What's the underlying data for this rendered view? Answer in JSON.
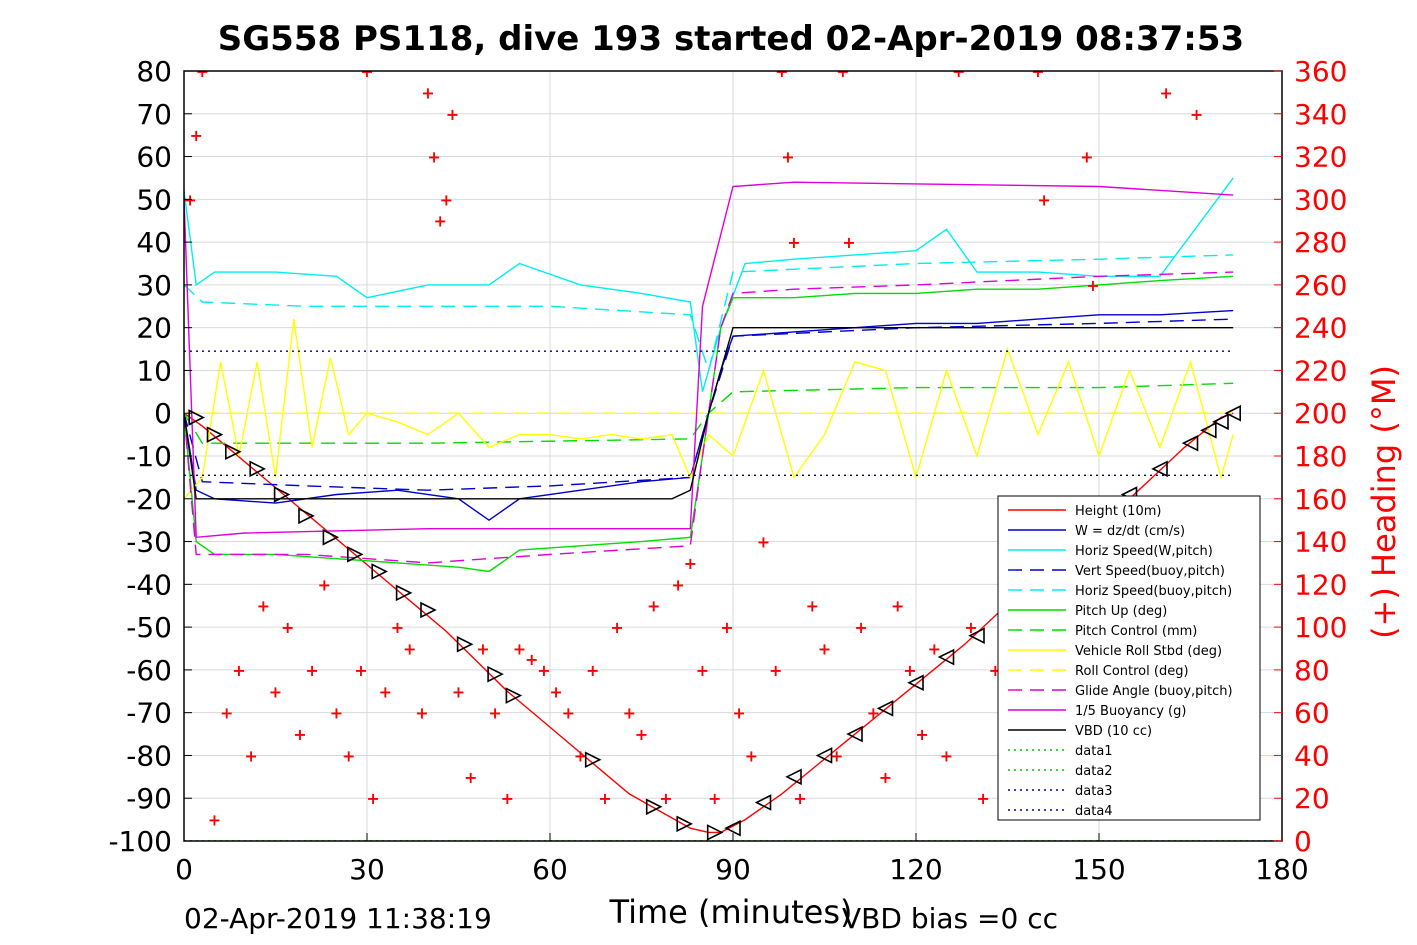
{
  "chart_data": {
    "type": "line",
    "title": "SG558 PS118, dive 193 started 02-Apr-2019 08:37:53",
    "xlabel": "Time (minutes)",
    "ylabel_right": "(+) Heading (°M)",
    "footer_left": "02-Apr-2019 11:38:19",
    "footer_right": "VBD bias =0 cc",
    "xlim": [
      0,
      180
    ],
    "ylim_left": [
      -100,
      80
    ],
    "ylim_right": [
      0,
      360
    ],
    "x_ticks": [
      "0",
      "30",
      "60",
      "90",
      "120",
      "150",
      "180"
    ],
    "y_ticks_left": [
      "80",
      "70",
      "60",
      "50",
      "40",
      "30",
      "20",
      "10",
      "0",
      "-10",
      "-20",
      "-30",
      "-40",
      "-50",
      "-60",
      "-70",
      "-80",
      "-90",
      "-100"
    ],
    "y_ticks_right": [
      "360",
      "340",
      "320",
      "300",
      "280",
      "260",
      "240",
      "220",
      "200",
      "180",
      "160",
      "140",
      "120",
      "100",
      "80",
      "60",
      "40",
      "20",
      "0"
    ],
    "grid": true,
    "legend_position": "lower-right",
    "colors": {
      "axis_right": "#ff0000",
      "red": "#ff0000",
      "blue": "#0000cc",
      "cyan": "#00eeee",
      "green": "#00dd00",
      "yellow": "#ffff00",
      "magenta": "#dd00dd",
      "black": "#000000",
      "dataline": "#00bb00",
      "dataline_dark": "#000088"
    },
    "series": [
      {
        "name": "Height (10m)",
        "color": "#ff0000",
        "style": "solid",
        "x": [
          0,
          3,
          8,
          13,
          18,
          23,
          28,
          33,
          38,
          43,
          48,
          53,
          58,
          63,
          68,
          73,
          78,
          83,
          86,
          88,
          92,
          98,
          104,
          110,
          116,
          122,
          128,
          134,
          140,
          146,
          152,
          158,
          164,
          170,
          172
        ],
        "y": [
          0,
          -3,
          -9,
          -15,
          -21,
          -27,
          -33,
          -39,
          -45,
          -51,
          -58,
          -65,
          -71,
          -77,
          -83,
          -89,
          -93,
          -97,
          -98,
          -98,
          -95,
          -89,
          -82,
          -75,
          -68,
          -61,
          -54,
          -46,
          -39,
          -31,
          -24,
          -16,
          -8,
          -1,
          0
        ]
      },
      {
        "name": "W = dz/dt (cm/s)",
        "color": "#0000cc",
        "style": "solid",
        "x": [
          0,
          2,
          5,
          15,
          25,
          35,
          45,
          50,
          55,
          65,
          75,
          83,
          85,
          88,
          90,
          100,
          110,
          120,
          130,
          140,
          150,
          160,
          172
        ],
        "y": [
          0,
          -18,
          -20,
          -21,
          -19,
          -18,
          -20,
          -25,
          -20,
          -18,
          -16,
          -15,
          -5,
          10,
          18,
          19,
          20,
          21,
          21,
          22,
          23,
          23,
          24
        ]
      },
      {
        "name": "Horiz Speed(W,pitch)",
        "color": "#00eeee",
        "style": "solid",
        "x": [
          0,
          2,
          5,
          15,
          25,
          30,
          40,
          50,
          55,
          65,
          75,
          83,
          85,
          88,
          92,
          100,
          110,
          120,
          125,
          130,
          140,
          150,
          160,
          172
        ],
        "y": [
          52,
          30,
          33,
          33,
          32,
          27,
          30,
          30,
          35,
          30,
          28,
          26,
          5,
          20,
          35,
          36,
          37,
          38,
          43,
          33,
          33,
          32,
          32,
          55
        ]
      },
      {
        "name": "Vert Speed(buoy,pitch)",
        "color": "#0000cc",
        "style": "dash",
        "x": [
          0,
          3,
          20,
          40,
          60,
          83,
          86,
          90,
          120,
          150,
          172
        ],
        "y": [
          0,
          -16,
          -17,
          -18,
          -17,
          -15,
          0,
          18,
          20,
          21,
          22
        ]
      },
      {
        "name": "Horiz Speed(buoy,pitch)",
        "color": "#00eeee",
        "style": "dash",
        "x": [
          0,
          3,
          20,
          40,
          60,
          83,
          86,
          90,
          120,
          150,
          172
        ],
        "y": [
          30,
          26,
          25,
          25,
          25,
          23,
          10,
          33,
          35,
          36,
          37
        ]
      },
      {
        "name": "Pitch Up (deg)",
        "color": "#00dd00",
        "style": "solid",
        "x": [
          0,
          2,
          5,
          15,
          25,
          35,
          45,
          50,
          55,
          65,
          75,
          83,
          85,
          88,
          90,
          100,
          110,
          120,
          130,
          140,
          150,
          160,
          172
        ],
        "y": [
          0,
          -30,
          -33,
          -33,
          -34,
          -35,
          -36,
          -37,
          -32,
          -31,
          -30,
          -29,
          -10,
          20,
          27,
          27,
          28,
          28,
          29,
          29,
          30,
          31,
          32
        ]
      },
      {
        "name": "Pitch Control (mm)",
        "color": "#00dd00",
        "style": "dash",
        "x": [
          0,
          3,
          40,
          83,
          86,
          90,
          120,
          150,
          172
        ],
        "y": [
          0,
          -7,
          -7,
          -6,
          0,
          5,
          6,
          6,
          7
        ]
      },
      {
        "name": "Vehicle Roll Stbd (deg)",
        "color": "#ffff00",
        "style": "solid",
        "x": [
          0,
          3,
          6,
          9,
          12,
          15,
          18,
          21,
          24,
          27,
          30,
          35,
          40,
          45,
          50,
          55,
          60,
          65,
          70,
          75,
          80,
          83,
          86,
          90,
          95,
          100,
          105,
          110,
          115,
          120,
          125,
          130,
          135,
          140,
          145,
          150,
          155,
          160,
          165,
          170,
          172
        ],
        "y": [
          -20,
          -15,
          12,
          -10,
          12,
          -15,
          22,
          -8,
          13,
          -5,
          0,
          -2,
          -5,
          0,
          -8,
          -5,
          -5,
          -6,
          -5,
          -6,
          -5,
          -15,
          -5,
          -10,
          10,
          -15,
          -5,
          12,
          10,
          -15,
          10,
          -10,
          15,
          -5,
          12,
          -10,
          10,
          -8,
          12,
          -15,
          -5
        ]
      },
      {
        "name": "Roll Control (deg)",
        "color": "#ffff00",
        "style": "dash",
        "x": [
          0,
          172
        ],
        "y": [
          0,
          0
        ]
      },
      {
        "name": "Glide Angle (buoy,pitch)",
        "color": "#dd00dd",
        "style": "dash",
        "x": [
          0,
          2,
          20,
          40,
          60,
          83,
          85,
          88,
          90,
          100,
          120,
          150,
          172
        ],
        "y": [
          0,
          -33,
          -33,
          -35,
          -33,
          -31,
          -10,
          20,
          28,
          29,
          30,
          32,
          33
        ]
      },
      {
        "name": "1/5 Buoyancy (g)",
        "color": "#dd00dd",
        "style": "solid",
        "x": [
          0,
          2,
          10,
          40,
          60,
          83,
          85,
          90,
          100,
          150,
          172
        ],
        "y": [
          50,
          -29,
          -28,
          -27,
          -27,
          -27,
          25,
          53,
          54,
          53,
          51
        ]
      },
      {
        "name": "VBD (10 cc)",
        "color": "#000000",
        "style": "solid",
        "x": [
          0,
          2,
          10,
          80,
          83,
          86,
          90,
          150,
          172
        ],
        "y": [
          0,
          -20,
          -20,
          -20,
          -18,
          0,
          20,
          20,
          20
        ]
      },
      {
        "name": "data1",
        "color": "#00bb00",
        "style": "dot",
        "x": [
          0,
          180
        ],
        "y": [
          -100,
          -100
        ]
      },
      {
        "name": "data2",
        "color": "#00bb00",
        "style": "dot",
        "x": [
          0,
          180
        ],
        "y": [
          -100,
          -100
        ]
      },
      {
        "name": "data3",
        "color": "#000088",
        "style": "dot",
        "x": [
          0,
          172
        ],
        "y": [
          14.5,
          14.5
        ]
      },
      {
        "name": "data4",
        "color": "#000088",
        "style": "dot",
        "x": [
          0,
          172
        ],
        "y": [
          -14.5,
          -14.5
        ]
      }
    ],
    "heading_points": {
      "color": "#ff0000",
      "marker": "+",
      "axis": "right",
      "x": [
        1,
        2,
        3,
        5,
        7,
        9,
        11,
        13,
        15,
        17,
        19,
        21,
        23,
        25,
        27,
        29,
        30,
        31,
        33,
        35,
        37,
        39,
        40,
        41,
        42,
        43,
        44,
        45,
        47,
        49,
        51,
        53,
        55,
        57,
        59,
        61,
        63,
        65,
        67,
        69,
        71,
        73,
        75,
        77,
        79,
        81,
        83,
        85,
        87,
        89,
        91,
        93,
        95,
        97,
        98,
        99,
        100,
        101,
        103,
        105,
        107,
        108,
        109,
        111,
        113,
        115,
        117,
        119,
        121,
        123,
        125,
        127,
        129,
        131,
        133,
        135,
        137,
        139,
        140,
        141,
        143,
        145,
        147,
        148,
        149,
        151,
        153,
        155,
        157,
        159,
        161,
        163,
        165,
        166,
        167,
        169,
        171
      ],
      "y": [
        300,
        330,
        360,
        10,
        60,
        80,
        40,
        110,
        70,
        100,
        50,
        80,
        120,
        60,
        40,
        80,
        360,
        20,
        70,
        100,
        90,
        60,
        350,
        320,
        290,
        300,
        340,
        70,
        30,
        90,
        60,
        20,
        90,
        85,
        80,
        70,
        60,
        40,
        80,
        20,
        100,
        60,
        50,
        110,
        20,
        120,
        130,
        80,
        20,
        100,
        60,
        40,
        140,
        80,
        360,
        320,
        280,
        20,
        110,
        90,
        40,
        360,
        280,
        100,
        60,
        30,
        110,
        80,
        50,
        90,
        40,
        360,
        100,
        20,
        80,
        60,
        50,
        70,
        360,
        300,
        90,
        40,
        110,
        320,
        260,
        60,
        90,
        50,
        80,
        40,
        350,
        90,
        60,
        340,
        80,
        40,
        60
      ]
    },
    "triangle_markers": {
      "color": "#000000",
      "x": [
        2,
        5,
        8,
        12,
        16,
        20,
        24,
        28,
        32,
        36,
        40,
        46,
        51,
        54,
        67,
        77,
        82,
        87,
        90,
        95,
        100,
        105,
        110,
        115,
        120,
        125,
        130,
        135,
        140,
        145,
        150,
        155,
        160,
        165,
        168,
        170,
        172
      ],
      "y": [
        -1,
        -5,
        -9,
        -13,
        -19,
        -24,
        -29,
        -33,
        -37,
        -42,
        -46,
        -54,
        -61,
        -66,
        -81,
        -92,
        -96,
        -98,
        -97,
        -91,
        -85,
        -80,
        -75,
        -69,
        -63,
        -57,
        -52,
        -45,
        -39,
        -32,
        -26,
        -19,
        -13,
        -7,
        -4,
        -2,
        0
      ]
    }
  }
}
